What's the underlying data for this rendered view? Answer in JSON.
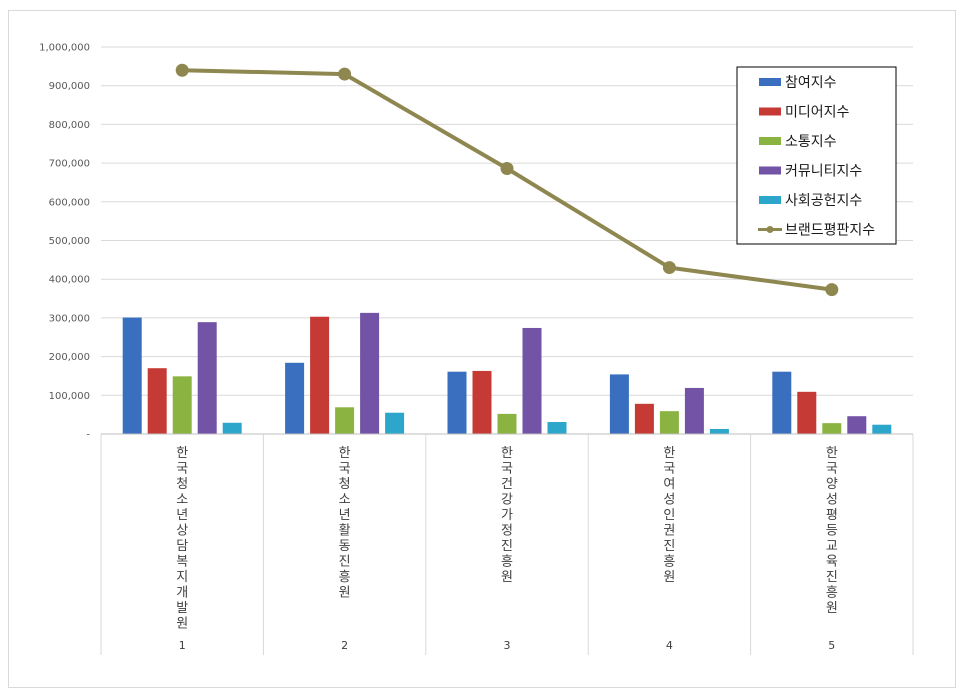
{
  "chart_data": {
    "type": "bar",
    "categories": [
      "한국청소년상담복지개발원",
      "한국청소년활동진흥원",
      "한국건강가정진흥원",
      "한국여성인권진흥원",
      "한국양성평등교육진흥원"
    ],
    "ranks": [
      "1",
      "2",
      "3",
      "4",
      "5"
    ],
    "series": [
      {
        "name": "참여지수",
        "kind": "bar",
        "color": "#3a6fbf",
        "values": [
          301000,
          184000,
          161000,
          154000,
          161000
        ]
      },
      {
        "name": "미디어지수",
        "kind": "bar",
        "color": "#c53a35",
        "values": [
          170000,
          303000,
          163000,
          78000,
          109000
        ]
      },
      {
        "name": "소통지수",
        "kind": "bar",
        "color": "#8bb341",
        "values": [
          149000,
          69000,
          52000,
          59000,
          28000
        ]
      },
      {
        "name": "커뮤니티지수",
        "kind": "bar",
        "color": "#7353a6",
        "values": [
          289000,
          313000,
          274000,
          119000,
          46000
        ]
      },
      {
        "name": "사회공헌지수",
        "kind": "bar",
        "color": "#2da6cc",
        "values": [
          29000,
          55000,
          31000,
          13000,
          24000
        ]
      },
      {
        "name": "브랜드평판지수",
        "kind": "line",
        "color": "#8f8750",
        "values": [
          940000,
          930000,
          686000,
          430000,
          373000
        ]
      }
    ],
    "ylim": [
      0,
      1000000
    ],
    "yticks": [
      "-",
      "100,000",
      "200,000",
      "300,000",
      "400,000",
      "500,000",
      "600,000",
      "700,000",
      "800,000",
      "900,000",
      "1,000,000"
    ],
    "grid": true,
    "legend": "top-right"
  }
}
